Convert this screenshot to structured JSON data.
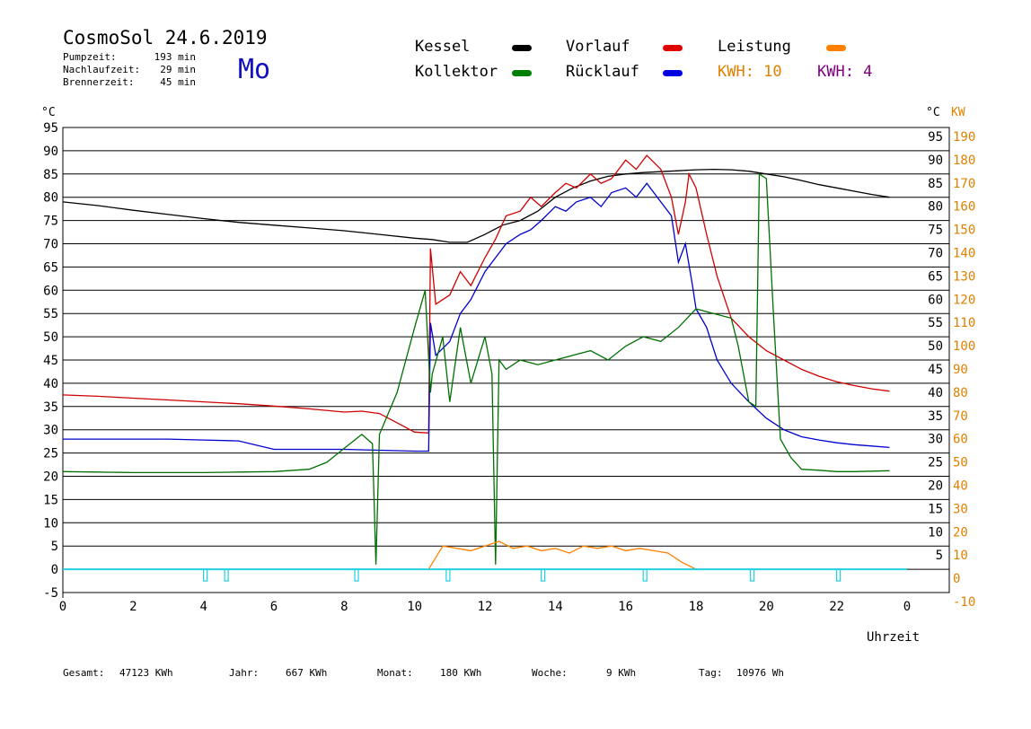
{
  "header": {
    "title": "CosmoSol 24.6.2019",
    "weekday": "Mo",
    "stats": [
      {
        "label": "Pumpzeit:",
        "value": "193 min"
      },
      {
        "label": "Nachlaufzeit:",
        "value": "29 min"
      },
      {
        "label": "Brennerzeit:",
        "value": "45 min"
      }
    ]
  },
  "legend": {
    "kessel": {
      "label": "Kessel",
      "color": "#000000"
    },
    "vorlauf": {
      "label": "Vorlauf",
      "color": "#e00000"
    },
    "leistung": {
      "label": "Leistung",
      "color": "#ff8000"
    },
    "kollektor": {
      "label": "Kollektor",
      "color": "#008000"
    },
    "ruecklauf": {
      "label": "Rücklauf",
      "color": "#0000e0"
    },
    "kwh1": {
      "label": "KWH: 10",
      "color": "#e08000"
    },
    "kwh2": {
      "label": "KWH: 4",
      "color": "#800080"
    }
  },
  "footer": {
    "gesamt": {
      "label": "Gesamt:",
      "value": "47123 KWh"
    },
    "jahr": {
      "label": "Jahr:",
      "value": "667 KWh"
    },
    "monat": {
      "label": "Monat:",
      "value": "180 KWh"
    },
    "woche": {
      "label": "Woche:",
      "value": "9 KWh"
    },
    "tag": {
      "label": "Tag:",
      "value": "10976 Wh"
    }
  },
  "chart_data": {
    "type": "line",
    "xlabel": "Uhrzeit",
    "y_left_unit": "°C",
    "y_right_units": [
      "°C",
      "KW"
    ],
    "xlim": [
      0,
      24
    ],
    "ylim": [
      -5,
      95
    ],
    "y2lim": [
      -10,
      190
    ],
    "grid": true,
    "x_ticks": [
      "0",
      "2",
      "4",
      "6",
      "8",
      "10",
      "12",
      "14",
      "16",
      "18",
      "20",
      "22",
      "0"
    ],
    "y_left_ticks": [
      "95",
      "90",
      "85",
      "80",
      "75",
      "70",
      "65",
      "60",
      "55",
      "50",
      "45",
      "40",
      "35",
      "30",
      "25",
      "20",
      "15",
      "10",
      "5",
      "0",
      "-5"
    ],
    "y_right_ticks": [
      "95",
      "90",
      "85",
      "80",
      "75",
      "70",
      "65",
      "60",
      "55",
      "50",
      "45",
      "40",
      "35",
      "30",
      "25",
      "20",
      "15",
      "10",
      "5"
    ],
    "y_kw_ticks": [
      "190",
      "180",
      "170",
      "160",
      "150",
      "140",
      "130",
      "120",
      "110",
      "100",
      "90",
      "80",
      "70",
      "60",
      "50",
      "40",
      "30",
      "20",
      "10",
      "0",
      "-10"
    ],
    "series": [
      {
        "name": "Kessel",
        "color": "#000000",
        "x": [
          0,
          1,
          2,
          3,
          4,
          5,
          6,
          7,
          8,
          9,
          10,
          10.5,
          11,
          11.5,
          12,
          12.5,
          13,
          13.5,
          14,
          14.5,
          15,
          15.5,
          16,
          16.5,
          17,
          17.5,
          18,
          18.5,
          19,
          19.5,
          20,
          20.5,
          21,
          21.5,
          22,
          22.5,
          23,
          23.5
        ],
        "y": [
          79,
          78.2,
          77.2,
          76.3,
          75.4,
          74.6,
          74,
          73.4,
          72.8,
          72,
          71.2,
          70.9,
          70.3,
          70.3,
          72,
          74,
          75,
          77,
          80,
          82,
          83.5,
          84.5,
          85,
          85.3,
          85.5,
          85.7,
          85.9,
          86,
          85.9,
          85.6,
          85,
          84.4,
          83.6,
          82.7,
          82,
          81.3,
          80.6,
          80
        ]
      },
      {
        "name": "Vorlauf",
        "color": "#d00000",
        "x": [
          0,
          1,
          2,
          3,
          4,
          5,
          6,
          7,
          8,
          8.5,
          9,
          9.5,
          10,
          10.4,
          10.45,
          10.6,
          11,
          11.3,
          11.6,
          12,
          12.3,
          12.6,
          13,
          13.3,
          13.6,
          14,
          14.3,
          14.6,
          15,
          15.3,
          15.6,
          16,
          16.3,
          16.6,
          17,
          17.3,
          17.5,
          17.7,
          17.8,
          18,
          18.3,
          18.6,
          19,
          19.5,
          20,
          20.5,
          21,
          21.5,
          22,
          22.5,
          23,
          23.5
        ],
        "y": [
          37.5,
          37.2,
          36.8,
          36.4,
          36,
          35.6,
          35.1,
          34.5,
          33.8,
          34,
          33.5,
          31.5,
          29.5,
          29.3,
          69,
          57,
          59,
          64,
          61,
          67,
          71,
          76,
          77,
          80,
          78,
          81,
          83,
          82,
          85,
          83,
          84,
          88,
          86,
          89,
          86,
          80,
          72,
          79,
          85,
          82,
          72,
          63,
          54,
          50,
          47,
          45,
          43,
          41.5,
          40.3,
          39.5,
          38.8,
          38.3
        ]
      },
      {
        "name": "Rücklauf",
        "color": "#0000d0",
        "x": [
          0,
          1,
          2,
          3,
          4,
          5,
          6,
          7,
          8,
          9,
          10,
          10.4,
          10.45,
          10.6,
          11,
          11.3,
          11.6,
          12,
          12.3,
          12.6,
          13,
          13.3,
          13.6,
          14,
          14.3,
          14.6,
          15,
          15.3,
          15.6,
          16,
          16.3,
          16.6,
          17,
          17.3,
          17.5,
          17.7,
          17.9,
          18,
          18.3,
          18.6,
          19,
          19.5,
          20,
          20.5,
          21,
          21.5,
          22,
          22.5,
          23,
          23.5
        ],
        "y": [
          28,
          28,
          28,
          28,
          27.8,
          27.6,
          25.8,
          25.8,
          25.8,
          25.6,
          25.4,
          25.4,
          53,
          46,
          49,
          55,
          58,
          64,
          67,
          70,
          72,
          73,
          75,
          78,
          77,
          79,
          80,
          78,
          81,
          82,
          80,
          83,
          79,
          76,
          66,
          70,
          61,
          56,
          52,
          45,
          40,
          36,
          32.5,
          30,
          28.5,
          27.8,
          27.2,
          26.8,
          26.5,
          26.2
        ]
      },
      {
        "name": "Kollektor",
        "color": "#007000",
        "x": [
          0,
          1,
          2,
          3,
          4,
          5,
          6,
          7,
          7.5,
          8,
          8.5,
          8.8,
          8.9,
          9,
          9.5,
          10,
          10.3,
          10.45,
          10.5,
          10.8,
          11,
          11.3,
          11.6,
          12,
          12.2,
          12.3,
          12.4,
          12.6,
          13,
          13.5,
          14,
          14.5,
          15,
          15.5,
          16,
          16.5,
          17,
          17.5,
          18,
          18.5,
          19,
          19.2,
          19.5,
          19.7,
          19.8,
          20,
          20.2,
          20.4,
          20.7,
          21,
          21.5,
          22,
          22.5,
          23,
          23.5
        ],
        "y": [
          21,
          20.9,
          20.8,
          20.8,
          20.8,
          20.9,
          21,
          21.5,
          23,
          26,
          29,
          27,
          1,
          29,
          38,
          52,
          60,
          38,
          42,
          50,
          36,
          52,
          40,
          50,
          42,
          1,
          45,
          43,
          45,
          44,
          45,
          46,
          47,
          45,
          48,
          50,
          49,
          52,
          56,
          55,
          54,
          48,
          36,
          35,
          85,
          84,
          55,
          28,
          24,
          21.5,
          21.3,
          21,
          21,
          21.1,
          21.2
        ]
      },
      {
        "name": "Leistung",
        "color": "#ff8000",
        "x": [
          10.4,
          10.8,
          11.2,
          11.6,
          12,
          12.4,
          12.8,
          13.2,
          13.6,
          14,
          14.4,
          14.8,
          15.2,
          15.6,
          16,
          16.4,
          16.8,
          17.2,
          17.6,
          18
        ],
        "y": [
          0,
          10,
          9,
          8,
          10,
          12,
          9,
          10,
          8,
          9,
          7,
          10,
          9,
          10,
          8,
          9,
          8,
          7,
          3,
          0
        ]
      }
    ],
    "pump_marker_times": [
      4.05,
      4.65,
      8.35,
      10.95,
      13.65,
      16.55,
      19.6,
      22.05
    ]
  }
}
